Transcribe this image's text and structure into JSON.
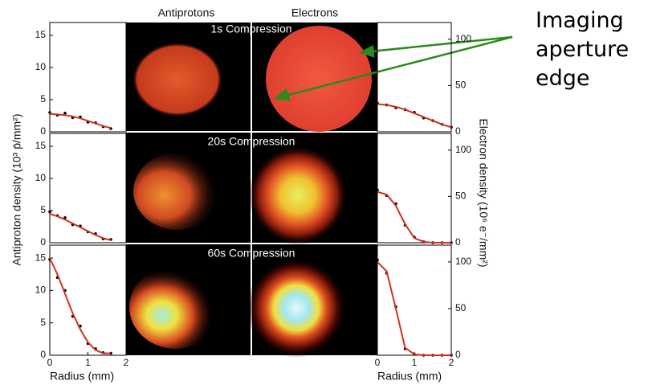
{
  "figure": {
    "columns": [
      "Antiprotons",
      "Electrons"
    ],
    "rows": [
      "1s Compression",
      "20s Compression",
      "60s Compression"
    ],
    "ylabel_left": "Antiproton density (10³ p̄/mm²)",
    "ylabel_right": "Electron density (10⁶ e⁻/mm²)",
    "annotation": "Imaging aperture edge"
  },
  "chart_data": [
    {
      "type": "line",
      "yaxis": "left",
      "x": [
        0,
        0.2,
        0.4,
        0.6,
        0.8,
        1,
        1.2,
        1.4,
        1.6
      ],
      "xlim": [
        0,
        2
      ],
      "ylim": [
        0,
        17
      ],
      "yticks": [
        0,
        5,
        10,
        15
      ],
      "series": [
        {
          "style": "dots",
          "color": "#000000",
          "values": [
            3,
            2.6,
            2.9,
            2.2,
            2.3,
            1.5,
            1.4,
            0.8,
            0.5
          ]
        },
        {
          "style": "line",
          "color": "#d03020",
          "values": [
            2.8,
            2.7,
            2.6,
            2.4,
            2.1,
            1.7,
            1.3,
            0.9,
            0.6
          ]
        }
      ]
    },
    {
      "type": "line",
      "yaxis": "left",
      "x": [
        0,
        0.2,
        0.4,
        0.6,
        0.8,
        1,
        1.2,
        1.4,
        1.6
      ],
      "xlim": [
        0,
        2
      ],
      "ylim": [
        0,
        17
      ],
      "yticks": [
        0,
        5,
        10,
        15
      ],
      "series": [
        {
          "style": "dots",
          "color": "#000000",
          "values": [
            4.8,
            4.2,
            3.9,
            2.8,
            2.6,
            1.7,
            1.4,
            0.6,
            0.5
          ]
        },
        {
          "style": "line",
          "color": "#d03020",
          "values": [
            4.5,
            4.1,
            3.6,
            3,
            2.4,
            1.8,
            1.2,
            0.7,
            0.4
          ]
        }
      ]
    },
    {
      "type": "line",
      "yaxis": "left",
      "x": [
        0,
        0.2,
        0.4,
        0.6,
        0.8,
        1,
        1.2,
        1.4,
        1.6
      ],
      "xlim": [
        0,
        2
      ],
      "xticks": [
        0,
        1,
        2
      ],
      "xlabel": "Radius (mm)",
      "ylim": [
        0,
        17
      ],
      "yticks": [
        0,
        5,
        10,
        15
      ],
      "series": [
        {
          "style": "dots",
          "color": "#000000",
          "values": [
            14.8,
            12,
            10,
            6,
            4.5,
            1.8,
            1,
            0.4,
            0.3
          ]
        },
        {
          "style": "line",
          "color": "#d03020",
          "values": [
            15,
            12.5,
            9.5,
            6.5,
            4,
            2,
            0.8,
            0.3,
            0.3
          ]
        }
      ]
    },
    {
      "type": "line",
      "yaxis": "right",
      "x": [
        0,
        0.25,
        0.5,
        0.75,
        1,
        1.25,
        1.5,
        1.75,
        2
      ],
      "xlim": [
        0,
        2
      ],
      "ylim": [
        0,
        118
      ],
      "yticks": [
        0,
        50,
        100
      ],
      "series": [
        {
          "style": "dots",
          "color": "#000000",
          "values": [
            31,
            29,
            26,
            24,
            21,
            15,
            12,
            8,
            5
          ]
        },
        {
          "style": "line",
          "color": "#d03020",
          "values": [
            30,
            29,
            27,
            24,
            20,
            16,
            12,
            8,
            5
          ]
        }
      ]
    },
    {
      "type": "line",
      "yaxis": "right",
      "x": [
        0,
        0.25,
        0.5,
        0.75,
        1,
        1.25,
        1.5,
        1.75,
        2
      ],
      "xlim": [
        0,
        2
      ],
      "ylim": [
        0,
        118
      ],
      "yticks": [
        0,
        50,
        100
      ],
      "series": [
        {
          "style": "dots",
          "color": "#000000",
          "values": [
            57,
            51,
            42,
            19,
            6,
            1,
            0,
            0,
            0
          ]
        },
        {
          "style": "line",
          "color": "#d03020",
          "values": [
            55,
            52,
            40,
            20,
            5,
            1,
            0,
            0,
            0
          ]
        }
      ]
    },
    {
      "type": "line",
      "yaxis": "right",
      "x": [
        0,
        0.25,
        0.5,
        0.75,
        1,
        1.25,
        1.5,
        1.75,
        2
      ],
      "xlim": [
        0,
        2
      ],
      "xticks": [
        0,
        1,
        2
      ],
      "xlabel": "Radius (mm)",
      "ylim": [
        0,
        118
      ],
      "yticks": [
        0,
        50,
        100
      ],
      "series": [
        {
          "style": "dots",
          "color": "#000000",
          "values": [
            102,
            88,
            52,
            7,
            1,
            0,
            0,
            0,
            0
          ]
        },
        {
          "style": "line",
          "color": "#d03020",
          "values": [
            100,
            90,
            50,
            8,
            1,
            0,
            0,
            0,
            0
          ]
        }
      ]
    }
  ]
}
